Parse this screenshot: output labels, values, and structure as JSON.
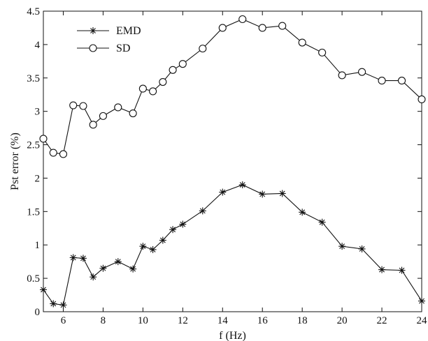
{
  "chart_data": {
    "type": "line",
    "title": "",
    "xlabel": "f (Hz)",
    "ylabel": "Pst error (%)",
    "xlim": [
      5,
      24
    ],
    "ylim": [
      0,
      4.5
    ],
    "x_ticks": [
      "6",
      "8",
      "10",
      "12",
      "14",
      "16",
      "18",
      "20",
      "22",
      "24"
    ],
    "y_ticks": [
      "0",
      "0.5",
      "1",
      "1.5",
      "2",
      "2.5",
      "3",
      "3.5",
      "4",
      "4.5"
    ],
    "legend_position": "top-left",
    "grid": false,
    "series": [
      {
        "name": "EMD",
        "marker": "star",
        "x": [
          5,
          5.5,
          6,
          6.5,
          7,
          7.5,
          8,
          8.75,
          9.5,
          10,
          10.5,
          11,
          11.5,
          12,
          13,
          14,
          15,
          16,
          17,
          18,
          19,
          20,
          21,
          22,
          23,
          24
        ],
        "y": [
          0.33,
          0.12,
          0.1,
          0.81,
          0.8,
          0.52,
          0.65,
          0.75,
          0.64,
          0.98,
          0.93,
          1.07,
          1.23,
          1.31,
          1.51,
          1.79,
          1.9,
          1.76,
          1.77,
          1.49,
          1.34,
          0.98,
          0.94,
          0.63,
          0.62,
          0.16
        ]
      },
      {
        "name": "SD",
        "marker": "circle",
        "x": [
          5,
          5.5,
          6,
          6.5,
          7,
          7.5,
          8,
          8.75,
          9.5,
          10,
          10.5,
          11,
          11.5,
          12,
          13,
          14,
          15,
          16,
          17,
          18,
          19,
          20,
          21,
          22,
          23,
          24
        ],
        "y": [
          2.59,
          2.38,
          2.36,
          3.09,
          3.08,
          2.8,
          2.93,
          3.06,
          2.97,
          3.34,
          3.3,
          3.44,
          3.62,
          3.71,
          3.94,
          4.25,
          4.38,
          4.25,
          4.28,
          4.03,
          3.88,
          3.54,
          3.59,
          3.46,
          3.46,
          3.18
        ]
      }
    ]
  }
}
